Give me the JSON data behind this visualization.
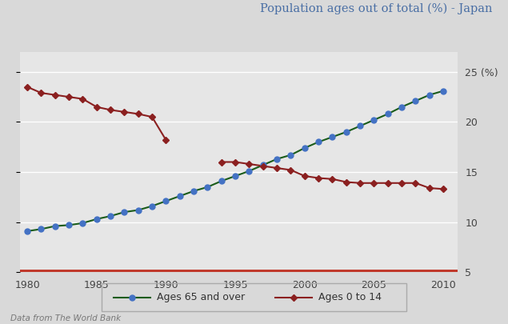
{
  "title": "Population ages out of total (%) - Japan",
  "source_text": "Data from The World Bank",
  "xlim": [
    1979.5,
    2011
  ],
  "ylim": [
    5,
    27
  ],
  "yticks": [
    5,
    10,
    15,
    20,
    25
  ],
  "ytick_labels_right": [
    "5",
    "10",
    "15",
    "20",
    "25 (%)"
  ],
  "xticks": [
    1980,
    1985,
    1990,
    1995,
    2000,
    2005,
    2010
  ],
  "bg_color": "#d9d9d9",
  "plot_bg_color": "#e6e6e6",
  "ages_65_color": "#4472c4",
  "ages_0_color": "#8b2020",
  "line_65_color": "#1a5c1a",
  "bottom_bar_color": "#c0392b",
  "ages_65_years": [
    1980,
    1981,
    1982,
    1983,
    1984,
    1985,
    1986,
    1987,
    1988,
    1989,
    1990,
    1991,
    1992,
    1993,
    1994,
    1995,
    1996,
    1997,
    1998,
    1999,
    2000,
    2001,
    2002,
    2003,
    2004,
    2005,
    2006,
    2007,
    2008,
    2009,
    2010
  ],
  "ages_65_values": [
    9.1,
    9.3,
    9.6,
    9.7,
    9.9,
    10.3,
    10.6,
    11.0,
    11.2,
    11.6,
    12.1,
    12.6,
    13.1,
    13.5,
    14.1,
    14.6,
    15.1,
    15.7,
    16.3,
    16.7,
    17.4,
    18.0,
    18.5,
    19.0,
    19.6,
    20.2,
    20.8,
    21.5,
    22.1,
    22.7,
    23.1
  ],
  "ages_0_segment1_years": [
    1980,
    1981,
    1982,
    1983,
    1984,
    1985,
    1986,
    1987,
    1988,
    1989,
    1990
  ],
  "ages_0_segment1_values": [
    23.5,
    22.9,
    22.7,
    22.5,
    22.3,
    21.5,
    21.2,
    21.0,
    20.8,
    20.5,
    18.2
  ],
  "ages_0_segment2_years": [
    1994,
    1995,
    1996,
    1997,
    1998,
    1999,
    2000,
    2001,
    2002,
    2003,
    2004,
    2005,
    2006,
    2007,
    2008,
    2009,
    2010
  ],
  "ages_0_segment2_values": [
    16.0,
    16.0,
    15.8,
    15.6,
    15.4,
    15.2,
    14.6,
    14.4,
    14.3,
    14.0,
    13.9,
    13.9,
    13.9,
    13.9,
    13.9,
    13.4,
    13.3
  ]
}
